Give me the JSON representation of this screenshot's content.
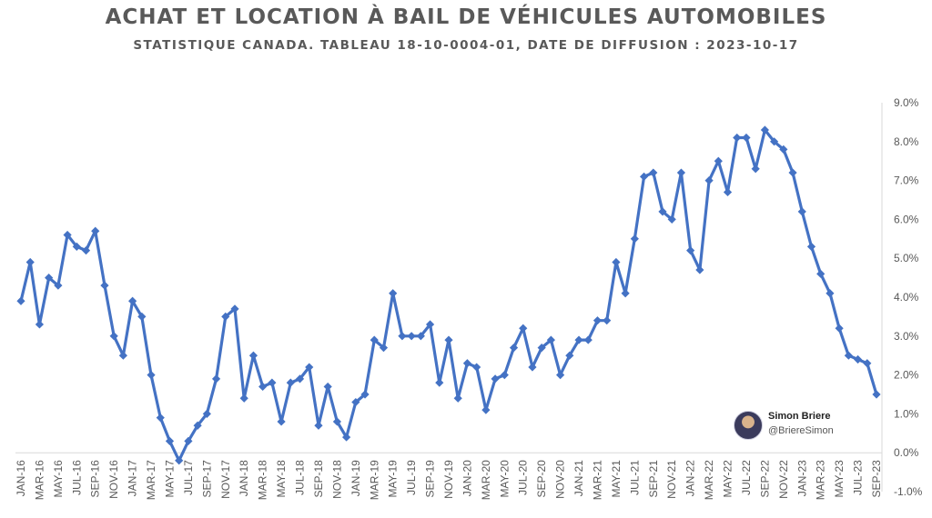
{
  "chart_data": {
    "type": "line",
    "title": "ACHAT ET LOCATION À BAIL DE VÉHICULES AUTOMOBILES",
    "subtitle": "STATISTIQUE CANADA.  TABLEAU 18-10-0004-01, DATE DE DIFFUSION : 2023-10-17",
    "ylim": [
      -1.0,
      9.0
    ],
    "yticks": [
      "9.0%",
      "8.0%",
      "7.0%",
      "6.0%",
      "5.0%",
      "4.0%",
      "3.0%",
      "2.0%",
      "1.0%",
      "0.0%",
      "-1.0%"
    ],
    "ytick_values": [
      9,
      8,
      7,
      6,
      5,
      4,
      3,
      2,
      1,
      0,
      -1
    ],
    "xtick_labels": [
      "JAN-16",
      "MAR-16",
      "MAY-16",
      "JUL-16",
      "SEP-16",
      "NOV-16",
      "JAN-17",
      "MAR-17",
      "MAY-17",
      "JUL-17",
      "SEP-17",
      "NOV-17",
      "JAN-18",
      "MAR-18",
      "MAY-18",
      "JUL-18",
      "SEP-18",
      "NOV-18",
      "JAN-19",
      "MAR-19",
      "MAY-19",
      "JUL-19",
      "SEP-19",
      "NOV-19",
      "JAN-20",
      "MAR-20",
      "MAY-20",
      "JUL-20",
      "SEP-20",
      "NOV-20",
      "JAN-21",
      "MAR-21",
      "MAY-21",
      "JUL-21",
      "SEP-21",
      "NOV-21",
      "JAN-22",
      "MAR-22",
      "MAY-22",
      "JUL-22",
      "SEP-22",
      "NOV-22",
      "JAN-23",
      "MAR-23",
      "MAY-23",
      "JUL-23",
      "SEP-23"
    ],
    "xtick_every": 2,
    "grid": false,
    "line_color": "#4472C4",
    "values": [
      3.9,
      4.9,
      3.3,
      4.5,
      4.3,
      5.6,
      5.3,
      5.2,
      5.7,
      4.3,
      3.0,
      2.5,
      3.9,
      3.5,
      2.0,
      0.9,
      0.3,
      -0.2,
      0.3,
      0.7,
      1.0,
      1.9,
      3.5,
      3.7,
      1.4,
      2.5,
      1.7,
      1.8,
      0.8,
      1.8,
      1.9,
      2.2,
      0.7,
      1.7,
      0.8,
      0.4,
      1.3,
      1.5,
      2.9,
      2.7,
      4.1,
      3.0,
      3.0,
      3.0,
      3.3,
      1.8,
      2.9,
      1.4,
      2.3,
      2.2,
      1.1,
      1.9,
      2.0,
      2.7,
      3.2,
      2.2,
      2.7,
      2.9,
      2.0,
      2.5,
      2.9,
      2.9,
      3.4,
      3.4,
      4.9,
      4.1,
      5.5,
      7.1,
      7.2,
      6.2,
      6.0,
      7.2,
      5.2,
      4.7,
      7.0,
      7.5,
      6.7,
      8.1,
      8.1,
      7.3,
      8.3,
      8.0,
      7.8,
      7.2,
      6.2,
      5.3,
      4.6,
      4.1,
      3.2,
      2.5,
      2.4,
      2.3,
      1.5
    ]
  },
  "credit": {
    "name": "Simon Briere",
    "handle": "@BriereSimon"
  }
}
